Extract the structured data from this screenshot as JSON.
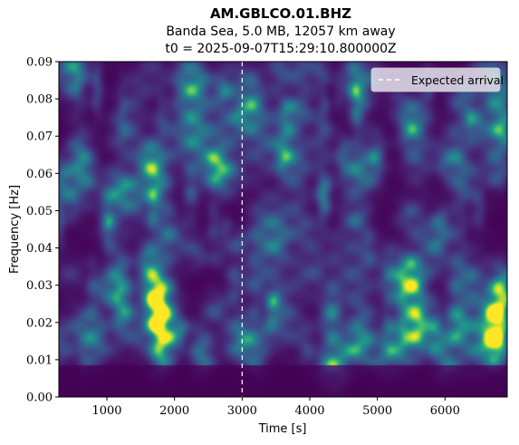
{
  "title": "AM.GBLCO.01.BHZ",
  "subtitle_line1": "Banda Sea, 5.0 MB, 12057 km away",
  "subtitle_line2": "t0 = 2025-09-07T15:29:10.800000Z",
  "chart_data": {
    "type": "heatmap",
    "title": "AM.GBLCO.01.BHZ",
    "subtitle": [
      "Banda Sea, 5.0 MB, 12057 km away",
      "t0 = 2025-09-07T15:29:10.800000Z"
    ],
    "xlabel": "Time [s]",
    "ylabel": "Frequency [Hz]",
    "xlim": [
      290,
      6920
    ],
    "ylim": [
      0.0,
      0.09
    ],
    "xticks": [
      1000,
      2000,
      3000,
      4000,
      5000,
      6000
    ],
    "xtick_labels": [
      "1000",
      "2000",
      "3000",
      "4000",
      "5000",
      "6000"
    ],
    "yticks": [
      0.0,
      0.01,
      0.02,
      0.03,
      0.04,
      0.05,
      0.06,
      0.07,
      0.08,
      0.09
    ],
    "ytick_labels": [
      "0.00",
      "0.01",
      "0.02",
      "0.03",
      "0.04",
      "0.05",
      "0.06",
      "0.07",
      "0.08",
      "0.09"
    ],
    "colormap": "viridis",
    "grid": false,
    "legend": {
      "placement": "top-right",
      "entries": [
        {
          "label": "Expected arrival",
          "style": "dashed",
          "color": "#ffffff"
        }
      ]
    },
    "vertical_line": {
      "x": 3000,
      "label": "Expected arrival",
      "color": "#ffffff"
    },
    "hotspots": [
      {
        "t": 1750,
        "f": 0.021,
        "intensity": 0.85
      },
      {
        "t": 1700,
        "f": 0.029,
        "intensity": 0.7
      },
      {
        "t": 1800,
        "f": 0.012,
        "intensity": 0.6
      },
      {
        "t": 1250,
        "f": 0.022,
        "intensity": 0.55
      },
      {
        "t": 1150,
        "f": 0.029,
        "intensity": 0.45
      },
      {
        "t": 2600,
        "f": 0.062,
        "intensity": 0.5
      },
      {
        "t": 2400,
        "f": 0.013,
        "intensity": 0.35
      },
      {
        "t": 600,
        "f": 0.065,
        "intensity": 0.45
      },
      {
        "t": 1750,
        "f": 0.056,
        "intensity": 0.4
      },
      {
        "t": 3000,
        "f": 0.016,
        "intensity": 0.45
      },
      {
        "t": 5500,
        "f": 0.029,
        "intensity": 0.55
      },
      {
        "t": 5600,
        "f": 0.019,
        "intensity": 0.5
      },
      {
        "t": 5500,
        "f": 0.073,
        "intensity": 0.45
      },
      {
        "t": 5200,
        "f": 0.014,
        "intensity": 0.4
      },
      {
        "t": 6750,
        "f": 0.014,
        "intensity": 1.0
      },
      {
        "t": 6750,
        "f": 0.022,
        "intensity": 0.9
      },
      {
        "t": 6850,
        "f": 0.029,
        "intensity": 0.7
      },
      {
        "t": 6200,
        "f": 0.019,
        "intensity": 0.55
      }
    ]
  }
}
